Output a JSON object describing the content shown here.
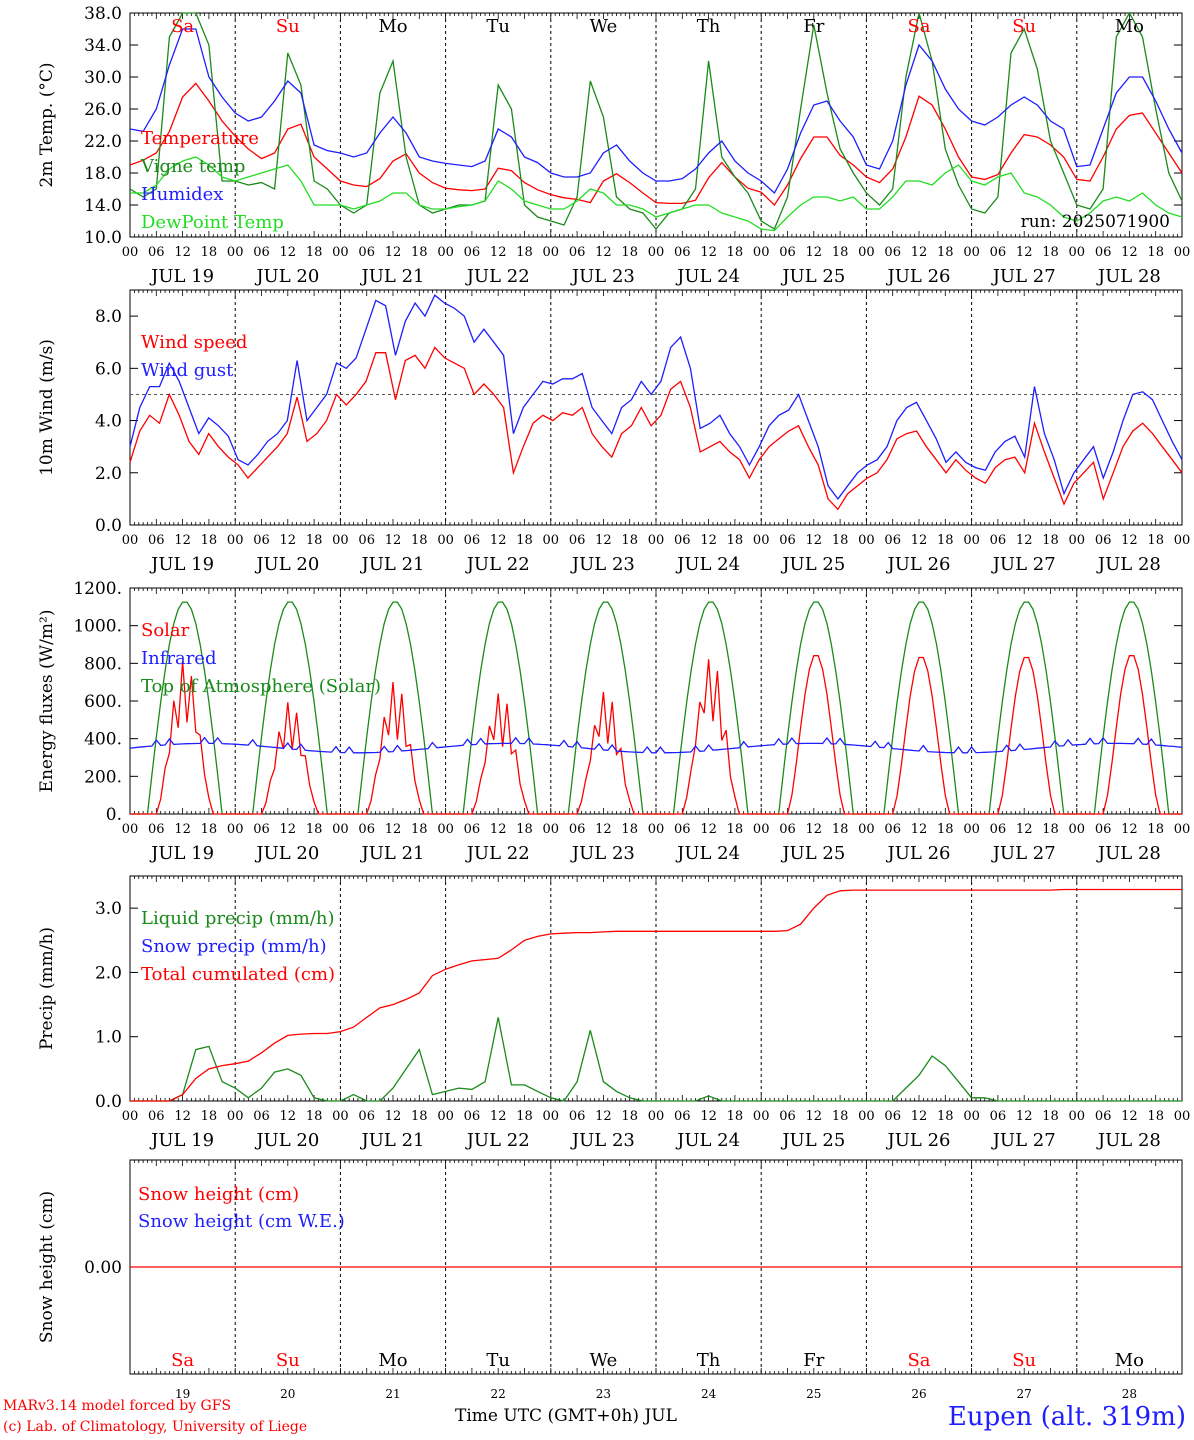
{
  "footer": {
    "model": "MARv3.14 model forced by GFS",
    "credit": "(c) Lab. of Climatology, University of Liege",
    "time_axis": "Time UTC (GMT+0h) JUL",
    "station": "Eupen (alt. 319m)"
  },
  "days": {
    "abbr": [
      "Sa",
      "Su",
      "Mo",
      "Tu",
      "We",
      "Th",
      "Fr",
      "Sa",
      "Su",
      "Mo"
    ],
    "weekend": [
      true,
      true,
      false,
      false,
      false,
      false,
      false,
      true,
      true,
      false
    ],
    "dates": [
      "JUL 19",
      "JUL 20",
      "JUL 21",
      "JUL 22",
      "JUL 23",
      "JUL 24",
      "JUL 25",
      "JUL 26",
      "JUL 27",
      "JUL 28"
    ],
    "numbers": [
      "19",
      "20",
      "21",
      "22",
      "23",
      "24",
      "25",
      "26",
      "27",
      "28"
    ],
    "hour_ticks": [
      "00",
      "06",
      "12",
      "18"
    ],
    "last_tick": "00"
  },
  "colors": {
    "red": "#ff0000",
    "green": "#1a8a1a",
    "blue": "#1e1eff",
    "lightgreen": "#22dd22",
    "weekend": "#ff0000",
    "text": "#000000"
  },
  "chart_data": [
    {
      "id": "temp",
      "type": "line",
      "ylabel": "2m Temp. (°C)",
      "ylim": [
        10,
        38
      ],
      "yticks": [
        "10.0",
        "14.0",
        "18.0",
        "22.0",
        "26.0",
        "30.0",
        "34.0",
        "38.0"
      ],
      "annotation": "run: 2025071900",
      "x_unit": "hours since JUL 19 00 UTC, 3-hourly",
      "series": [
        {
          "name": "Temperature",
          "color": "red",
          "values": [
            19.0,
            19.6,
            20.5,
            23.2,
            27.5,
            29.2,
            27.0,
            24.5,
            22.6,
            21.0,
            19.8,
            20.5,
            23.5,
            24.1,
            20.0,
            18.5,
            17.0,
            16.5,
            16.3,
            17.3,
            19.5,
            20.4,
            18.0,
            16.8,
            16.1,
            15.9,
            15.8,
            16.0,
            18.6,
            18.3,
            16.8,
            15.9,
            15.3,
            14.9,
            14.7,
            14.3,
            17.0,
            17.9,
            16.8,
            15.5,
            14.3,
            14.2,
            14.2,
            14.6,
            17.4,
            19.3,
            17.5,
            16.1,
            15.6,
            14.0,
            16.5,
            19.8,
            22.5,
            22.5,
            20.2,
            19.0,
            17.5,
            16.8,
            18.5,
            22.5,
            27.6,
            26.5,
            23.5,
            20.0,
            17.5,
            17.2,
            17.8,
            20.5,
            22.8,
            22.5,
            21.5,
            20.0,
            17.2,
            17.0,
            20.0,
            23.5,
            25.2,
            25.5,
            23.0,
            20.5,
            18.0
          ]
        },
        {
          "name": "Vigne temp",
          "color": "green",
          "values": [
            16.0,
            15.0,
            16.0,
            35.0,
            38.0,
            38.0,
            34.0,
            17.0,
            17.0,
            16.5,
            16.8,
            16.0,
            33.0,
            29.0,
            17.0,
            16.0,
            14.0,
            13.0,
            14.0,
            28.0,
            32.0,
            20.0,
            14.0,
            13.0,
            13.5,
            14.0,
            14.0,
            14.5,
            29.0,
            26.0,
            14.0,
            12.5,
            12.0,
            11.5,
            15.0,
            29.5,
            25.0,
            15.0,
            13.5,
            13.0,
            11.0,
            13.0,
            13.5,
            16.0,
            32.0,
            20.0,
            17.5,
            15.5,
            12.0,
            11.0,
            15.0,
            26.0,
            36.5,
            28.0,
            21.0,
            18.0,
            15.5,
            14.0,
            16.0,
            30.0,
            38.0,
            32.0,
            21.0,
            16.5,
            13.5,
            13.0,
            15.0,
            33.0,
            36.0,
            31.0,
            22.0,
            18.0,
            14.0,
            13.5,
            16.0,
            35.0,
            38.0,
            35.0,
            26.0,
            18.0,
            14.5
          ]
        },
        {
          "name": "Humidex",
          "color": "blue",
          "values": [
            23.5,
            23.2,
            26.0,
            31.5,
            36.0,
            36.0,
            30.0,
            27.5,
            25.5,
            24.5,
            25.0,
            27.0,
            29.5,
            28.0,
            21.5,
            20.8,
            20.5,
            20.0,
            20.5,
            23.0,
            25.0,
            23.0,
            20.0,
            19.5,
            19.2,
            19.0,
            18.8,
            19.5,
            23.5,
            22.5,
            20.0,
            19.3,
            18.0,
            17.5,
            17.5,
            18.0,
            20.5,
            21.5,
            19.5,
            18.0,
            17.0,
            17.0,
            17.3,
            18.5,
            20.5,
            22.0,
            19.5,
            18.0,
            17.0,
            15.5,
            18.5,
            23.0,
            26.5,
            27.0,
            24.5,
            22.5,
            19.0,
            18.5,
            22.0,
            29.0,
            34.0,
            32.0,
            28.5,
            26.0,
            24.5,
            24.0,
            25.0,
            26.5,
            27.5,
            26.5,
            24.5,
            23.5,
            18.8,
            19.0,
            23.5,
            28.0,
            30.0,
            30.0,
            27.0,
            23.5,
            20.5
          ]
        },
        {
          "name": "DewPoint Temp",
          "color": "lightgreen",
          "values": [
            15.5,
            15.5,
            16.5,
            18.5,
            19.5,
            20.0,
            19.0,
            17.5,
            17.0,
            17.5,
            18.0,
            18.5,
            19.0,
            17.0,
            14.0,
            14.0,
            14.0,
            13.5,
            14.0,
            14.5,
            15.5,
            15.5,
            14.0,
            13.5,
            13.5,
            13.8,
            14.0,
            14.5,
            17.0,
            16.0,
            14.5,
            14.0,
            13.5,
            13.5,
            14.5,
            16.0,
            15.5,
            14.0,
            14.0,
            13.5,
            12.5,
            13.0,
            13.5,
            14.0,
            14.0,
            13.0,
            12.5,
            12.0,
            11.0,
            10.8,
            12.5,
            14.0,
            15.0,
            15.0,
            14.5,
            15.0,
            13.5,
            13.5,
            15.0,
            17.0,
            17.0,
            16.5,
            18.0,
            19.0,
            17.0,
            16.5,
            17.5,
            18.0,
            15.5,
            15.0,
            14.0,
            12.5,
            12.0,
            13.0,
            14.5,
            15.0,
            14.5,
            15.5,
            14.0,
            13.0,
            12.5
          ]
        }
      ]
    },
    {
      "id": "wind",
      "type": "line",
      "ylabel": "10m Wind (m/s)",
      "ylim": [
        0,
        9
      ],
      "yticks": [
        "0.0",
        "2.0",
        "4.0",
        "6.0",
        "8.0"
      ],
      "reference_line": 5.0,
      "x_unit": "hours since JUL 19 00 UTC, 3-hourly",
      "series": [
        {
          "name": "Wind speed",
          "color": "red",
          "values": [
            2.4,
            3.6,
            4.2,
            3.9,
            5.0,
            4.2,
            3.2,
            2.7,
            3.5,
            3.0,
            2.6,
            2.3,
            1.8,
            2.2,
            2.6,
            3.0,
            3.5,
            4.9,
            3.2,
            3.5,
            4.0,
            5.0,
            4.6,
            5.0,
            5.5,
            6.6,
            6.6,
            4.8,
            6.3,
            6.5,
            6.0,
            6.8,
            6.4,
            6.2,
            6.0,
            5.0,
            5.4,
            5.0,
            4.5,
            2.0,
            3.0,
            3.9,
            4.2,
            4.0,
            4.3,
            4.2,
            4.5,
            3.5,
            3.0,
            2.6,
            3.5,
            3.8,
            4.5,
            3.8,
            4.2,
            5.2,
            5.5,
            4.5,
            2.8,
            3.0,
            3.2,
            2.8,
            2.5,
            1.8,
            2.5,
            3.0,
            3.3,
            3.6,
            3.8,
            3.0,
            2.3,
            1.0,
            0.6,
            1.2,
            1.5,
            1.8,
            2.0,
            2.5,
            3.3,
            3.5,
            3.6,
            3.0,
            2.5,
            2.0,
            2.5,
            2.1,
            1.8,
            1.6,
            2.2,
            2.5,
            2.6,
            2.0,
            3.9,
            2.8,
            1.8,
            0.8,
            1.6,
            2.0,
            2.4,
            1.0,
            2.0,
            3.0,
            3.6,
            3.9,
            3.5,
            3.0,
            2.5,
            2.0
          ]
        },
        {
          "name": "Wind gust",
          "color": "blue",
          "values": [
            3.0,
            4.5,
            5.3,
            5.3,
            6.2,
            5.5,
            4.5,
            3.5,
            4.1,
            3.8,
            3.4,
            2.5,
            2.3,
            2.7,
            3.2,
            3.5,
            4.0,
            6.3,
            4.0,
            4.5,
            5.0,
            6.2,
            6.0,
            6.4,
            7.5,
            8.6,
            8.4,
            6.5,
            7.8,
            8.5,
            8.0,
            8.8,
            8.5,
            8.3,
            8.0,
            7.0,
            7.5,
            7.0,
            6.5,
            3.5,
            4.5,
            5.0,
            5.5,
            5.4,
            5.6,
            5.6,
            5.8,
            4.5,
            4.0,
            3.5,
            4.5,
            4.8,
            5.5,
            5.0,
            5.5,
            6.8,
            7.2,
            6.0,
            3.7,
            3.9,
            4.2,
            3.5,
            3.0,
            2.3,
            3.0,
            3.8,
            4.2,
            4.4,
            5.0,
            4.0,
            3.0,
            1.5,
            1.0,
            1.5,
            2.0,
            2.3,
            2.5,
            3.0,
            4.0,
            4.5,
            4.7,
            4.0,
            3.3,
            2.4,
            2.8,
            2.4,
            2.2,
            2.1,
            2.8,
            3.2,
            3.4,
            2.6,
            5.3,
            3.5,
            2.5,
            1.2,
            2.0,
            2.5,
            3.0,
            1.8,
            2.8,
            4.0,
            5.0,
            5.1,
            4.8,
            4.0,
            3.2,
            2.5
          ]
        }
      ]
    },
    {
      "id": "energy",
      "type": "line",
      "ylabel": "Energy fluxes (W/m²)",
      "ylim": [
        0,
        1200
      ],
      "yticks": [
        "0.",
        "200.",
        "400.",
        "600.",
        "800.",
        "1000.",
        "1200."
      ],
      "x_unit": "hours since JUL 19 00 UTC",
      "series": [
        {
          "name": "Solar",
          "color": "red",
          "values": []
        },
        {
          "name": "Infrared",
          "color": "blue",
          "values": []
        },
        {
          "name": "Top of Atmosphere (Solar)",
          "color": "green",
          "values": []
        }
      ],
      "model": {
        "toa_peak": 1130,
        "toa_half_width_h": 8.5,
        "solar_peaks": [
          820,
          600,
          710,
          650,
          660,
          840,
          850,
          840,
          840,
          850
        ],
        "infrared_level": 350
      }
    },
    {
      "id": "precip",
      "type": "line",
      "ylabel": "Precip (mm/h)",
      "ylim": [
        0,
        3.5
      ],
      "yticks": [
        "0.0",
        "1.0",
        "2.0",
        "3.0"
      ],
      "x_unit": "hours since JUL 19 00 UTC, 3-hourly",
      "series": [
        {
          "name": "Liquid precip (mm/h)",
          "color": "green",
          "values": [
            0,
            0,
            0,
            0,
            0.1,
            0.8,
            0.85,
            0.3,
            0.2,
            0.05,
            0.2,
            0.45,
            0.5,
            0.4,
            0.05,
            0,
            0,
            0.1,
            0,
            0,
            0.2,
            0.5,
            0.8,
            0.1,
            0.15,
            0.2,
            0.18,
            0.3,
            1.3,
            0.25,
            0.25,
            0.15,
            0.05,
            0,
            0.3,
            1.1,
            0.3,
            0.15,
            0.05,
            0,
            0,
            0,
            0,
            0,
            0.08,
            0,
            0,
            0,
            0,
            0,
            0,
            0,
            0,
            0,
            0,
            0,
            0,
            0,
            0,
            0.2,
            0.4,
            0.7,
            0.55,
            0.3,
            0.05,
            0.05,
            0,
            0,
            0,
            0,
            0,
            0,
            0,
            0,
            0,
            0,
            0,
            0,
            0,
            0,
            0
          ]
        },
        {
          "name": "Snow precip (mm/h)",
          "color": "blue",
          "values": []
        },
        {
          "name": "Total cumulated (cm)",
          "color": "red",
          "values": [
            0,
            0,
            0,
            0,
            0.1,
            0.35,
            0.5,
            0.55,
            0.58,
            0.62,
            0.75,
            0.9,
            1.02,
            1.04,
            1.05,
            1.05,
            1.08,
            1.15,
            1.3,
            1.45,
            1.5,
            1.58,
            1.68,
            1.95,
            2.05,
            2.12,
            2.18,
            2.2,
            2.22,
            2.35,
            2.5,
            2.56,
            2.6,
            2.61,
            2.62,
            2.62,
            2.63,
            2.64,
            2.64,
            2.64,
            2.64,
            2.64,
            2.64,
            2.64,
            2.64,
            2.64,
            2.64,
            2.64,
            2.64,
            2.64,
            2.65,
            2.75,
            3.0,
            3.2,
            3.27,
            3.28,
            3.28,
            3.28,
            3.28,
            3.28,
            3.28,
            3.28,
            3.28,
            3.28,
            3.28,
            3.28,
            3.28,
            3.28,
            3.28,
            3.28,
            3.28,
            3.29,
            3.29,
            3.29,
            3.29,
            3.29,
            3.29,
            3.29,
            3.29,
            3.29,
            3.29
          ]
        }
      ]
    },
    {
      "id": "snow",
      "type": "line",
      "ylabel": "Snow height (cm)",
      "ylim": [
        -1,
        1
      ],
      "yticks": [
        "0.00"
      ],
      "x_unit": "hours since JUL 19 00 UTC",
      "series": [
        {
          "name": "Snow height (cm)",
          "color": "red",
          "values": [
            0,
            0
          ]
        },
        {
          "name": "Snow height (cm W.E.)",
          "color": "blue",
          "values": [
            0,
            0
          ]
        }
      ]
    }
  ]
}
